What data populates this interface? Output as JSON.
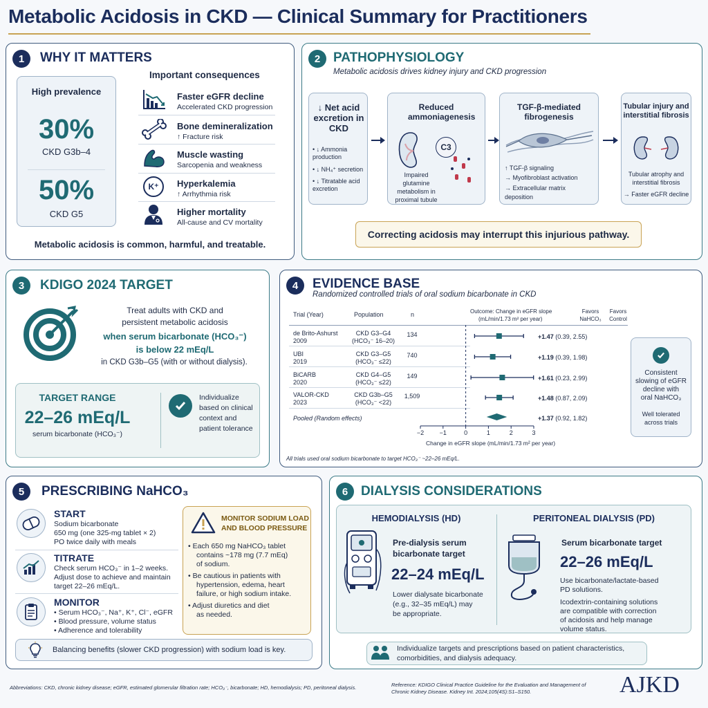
{
  "header": {
    "title": "Metabolic Acidosis in CKD — Clinical Summary for Practitioners"
  },
  "p1": {
    "num": "1",
    "title": "WHY IT MATTERS",
    "prevalence_label": "High prevalence",
    "stat1_value": "30%",
    "stat1_label": "CKD G3b–4",
    "stat2_value": "50%",
    "stat2_label": "CKD G5",
    "consequences_title": "Important consequences",
    "items": [
      {
        "title": "Faster eGFR decline",
        "desc": "Accelerated CKD progression"
      },
      {
        "title": "Bone demineralization",
        "desc": "↑ Fracture risk"
      },
      {
        "title": "Muscle wasting",
        "desc": "Sarcopenia and weakness"
      },
      {
        "title": "Hyperkalemia",
        "desc": "↑ Arrhythmia risk"
      },
      {
        "title": "Higher mortality",
        "desc": "All-cause and CV mortality"
      }
    ],
    "potassium_symbol": "K⁺",
    "footer": "Metabolic acidosis is common, harmful, and treatable."
  },
  "p2": {
    "num": "2",
    "title": "PATHOPHYSIOLOGY",
    "subtitle": "Metabolic acidosis drives kidney injury and CKD progression",
    "box1_title": "↓ Net acid excretion in CKD",
    "box1_bullets": [
      "• ↓ Ammonia production",
      "• ↓ NH₄⁺ secretion",
      "• ↓ Titratable acid excretion"
    ],
    "box2_title": "Reduced ammoniagenesis",
    "box2_c3": "C3",
    "box2_desc": "Impaired glutamine metabolism in proximal tubule",
    "box3_title": "TGF-β-mediated fibrogenesis",
    "box3_bullets": [
      "↑ TGF-β signaling",
      "→ Myofibroblast activation",
      "→ Extracellular matrix deposition"
    ],
    "box4_title": "Tubular injury and interstitial fibrosis",
    "box4_desc": "Tubular atrophy and interstitial fibrosis",
    "box4_arrow": "→ Faster eGFR decline",
    "callout": "Correcting acidosis may interrupt this injurious pathway."
  },
  "p3": {
    "num": "3",
    "title": "KDIGO 2024 TARGET",
    "line1": "Treat adults with CKD and",
    "line2": "persistent metabolic acidosis",
    "line3": "when serum bicarbonate (HCO₃⁻)",
    "line4": "is below 22 mEq/L",
    "line5": "in CKD G3b–G5 (with or without dialysis).",
    "range_label": "TARGET RANGE",
    "range_value": "22–26 mEq/L",
    "range_unit": "serum bicarbonate (HCO₃⁻)",
    "individualize": [
      "Individualize",
      "based on clinical",
      "context and",
      "patient tolerance"
    ]
  },
  "p4": {
    "num": "4",
    "title": "EVIDENCE BASE",
    "subtitle": "Randomized controlled trials of oral sodium bicarbonate in CKD",
    "headers": {
      "trial": "Trial (Year)",
      "population": "Population",
      "n": "n",
      "outcome1": "Outcome: Change in eGFR slope",
      "outcome2": "(mL/min/1.73 m² per year)",
      "favors1a": "Favors",
      "favors1b": "NaHCO₃",
      "favors2a": "Favors",
      "favors2b": "Control"
    },
    "trials": [
      {
        "name": "de Brito-Ashurst",
        "year": "2009",
        "pop1": "CKD G3–G4",
        "pop2": "(HCO₃⁻ 16–20)",
        "n": "134",
        "est": 1.47,
        "lo": 0.39,
        "hi": 2.55,
        "est_label": "+1.47",
        "ci": "(0.39, 2.55)"
      },
      {
        "name": "UBI",
        "year": "2019",
        "pop1": "CKD G3–G5",
        "pop2": "(HCO₃⁻ ≤22)",
        "n": "740",
        "est": 1.19,
        "lo": 0.39,
        "hi": 1.98,
        "est_label": "+1.19",
        "ci": "(0.39, 1.98)"
      },
      {
        "name": "BiCARB",
        "year": "2020",
        "pop1": "CKD G4–G5",
        "pop2": "(HCO₃⁻ ≤22)",
        "n": "149",
        "est": 1.61,
        "lo": 0.23,
        "hi": 2.99,
        "est_label": "+1.61",
        "ci": "(0.23, 2.99)"
      },
      {
        "name": "VALOR-CKD",
        "year": "2023",
        "pop1": "CKD G3b–G5",
        "pop2": "(HCO₃⁻ <22)",
        "n": "1,509",
        "est": 1.48,
        "lo": 0.87,
        "hi": 2.09,
        "est_label": "+1.48",
        "ci": "(0.87, 2.09)"
      }
    ],
    "pooled": {
      "label": "Pooled (Random effects)",
      "est": 1.37,
      "lo": 0.92,
      "hi": 1.82,
      "est_label": "+1.37",
      "ci": "(0.92, 1.82)"
    },
    "axis_ticks": [
      "−2",
      "−1",
      "0",
      "1",
      "2",
      "3"
    ],
    "axis_label": "Change in eGFR slope (mL/min/1.73 m² per year)",
    "footnote": "All trials used oral sodium bicarbonate to target HCO₃⁻ ~22–26 mEq/L.",
    "summary": [
      "Consistent",
      "slowing of eGFR",
      "decline with",
      "oral NaHCO₃"
    ],
    "summary2": [
      "Well tolerated",
      "across trials"
    ]
  },
  "p5": {
    "num": "5",
    "title": "PRESCRIBING NaHCO₃",
    "start_title": "START",
    "start_lines": [
      "Sodium bicarbonate",
      "650 mg (one 325-mg tablet × 2)",
      "PO twice daily with meals"
    ],
    "titrate_title": "TITRATE",
    "titrate_lines": [
      "Check serum HCO₃⁻ in 1–2 weeks.",
      "Adjust dose to achieve and maintain",
      "target 22–26 mEq/L."
    ],
    "monitor_title": "MONITOR",
    "monitor_lines": [
      "• Serum HCO₃⁻, Na⁺, K⁺, Cl⁻, eGFR",
      "• Blood pressure, volume status",
      "• Adherence and tolerability"
    ],
    "warn_title1": "MONITOR SODIUM LOAD",
    "warn_title2": "AND BLOOD PRESSURE",
    "warn_lines": [
      "• Each 650 mg NaHCO₃ tablet",
      "contains ~178 mg (7.7 mEq)",
      "of sodium.",
      "• Be cautious in patients with",
      "hypertension, edema, heart",
      "failure, or high sodium intake.",
      "• Adjust diuretics and diet",
      "as needed."
    ],
    "footer": "Balancing benefits (slower CKD progression) with sodium load is key."
  },
  "p6": {
    "num": "6",
    "title": "DIALYSIS CONSIDERATIONS",
    "hd_title": "HEMODIALYSIS (HD)",
    "hd_target1": "Pre-dialysis serum",
    "hd_target2": "bicarbonate target",
    "hd_value": "22–24 mEq/L",
    "hd_notes": [
      "Lower dialysate bicarbonate",
      "(e.g., 32–35 mEq/L) may",
      "be appropriate."
    ],
    "pd_title": "PERITONEAL DIALYSIS (PD)",
    "pd_target": "Serum bicarbonate target",
    "pd_value": "22–26 mEq/L",
    "pd_notes": [
      "Use bicarbonate/lactate-based",
      "PD solutions.",
      "Icodextrin-containing solutions",
      "are compatible with correction",
      "of acidosis and help manage",
      "volume status."
    ],
    "footer": [
      "Individualize targets and prescriptions based on patient characteristics,",
      "comorbidities, and dialysis adequacy."
    ]
  },
  "footer": {
    "abbreviations": "Abbreviations: CKD, chronic kidney disease; eGFR, estimated glomerular filtration rate; HCO₃⁻, bicarbonate; HD, hemodialysis; PD, peritoneal dialysis.",
    "reference1": "Reference: KDIGO Clinical Practice Guideline for the Evaluation and Management of",
    "reference2": "Chronic Kidney Disease. Kidney Int. 2024;105(4S):S1–S150.",
    "logo": "AJKD"
  }
}
